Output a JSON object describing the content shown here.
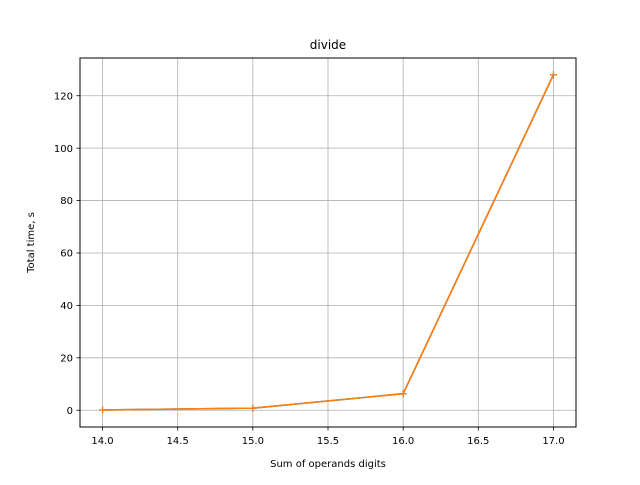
{
  "chart_data": {
    "type": "line",
    "title": "divide",
    "xlabel": "Sum of operands digits",
    "ylabel": "Total time, s",
    "xlim": [
      13.85,
      17.15
    ],
    "ylim": [
      -6.4,
      134.4
    ],
    "xticks": [
      14.0,
      14.5,
      15.0,
      15.5,
      16.0,
      16.5,
      17.0
    ],
    "xtick_labels": [
      "14.0",
      "14.5",
      "15.0",
      "15.5",
      "16.0",
      "16.5",
      "17.0"
    ],
    "yticks": [
      0,
      20,
      40,
      60,
      80,
      100,
      120
    ],
    "ytick_labels": [
      "0",
      "20",
      "40",
      "60",
      "80",
      "100",
      "120"
    ],
    "grid": true,
    "legend": null,
    "series": [
      {
        "x": [
          14,
          15,
          16,
          17
        ],
        "y": [
          0.1,
          0.8,
          6.3,
          128.0
        ],
        "color": "#1f77b4",
        "marker": "+"
      },
      {
        "x": [
          14,
          15,
          16,
          17
        ],
        "y": [
          0.1,
          0.8,
          6.3,
          128.0
        ],
        "color": "#ff7f0e",
        "marker": "+"
      }
    ]
  }
}
